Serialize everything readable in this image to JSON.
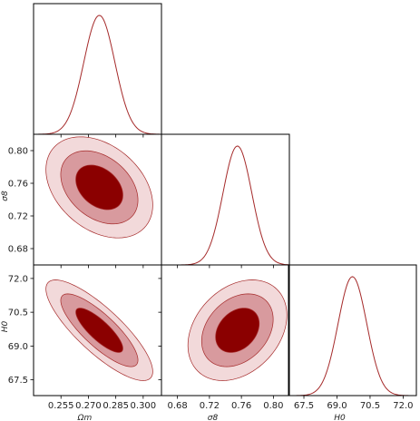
{
  "chart_data": {
    "type": "corner",
    "colors": {
      "line": "#a52a2a",
      "fill_1sigma": "#8b0000",
      "fill_2sigma": "#d89a9e",
      "fill_3sigma": "#f2d9da"
    },
    "parameters": [
      {
        "key": "om",
        "label": "Ωm",
        "range": [
          0.24,
          0.31
        ],
        "ticks": [
          "0.255",
          "0.270",
          "0.285",
          "0.300"
        ],
        "mean": 0.276,
        "sigma": 0.0085
      },
      {
        "key": "s8",
        "label": "σ8",
        "range": [
          0.66,
          0.82
        ],
        "ticks": [
          "0.68",
          "0.72",
          "0.76",
          "0.80"
        ],
        "mean": 0.755,
        "sigma": 0.018
      },
      {
        "key": "h0",
        "label": "H0",
        "range": [
          66.8,
          72.6
        ],
        "ticks": [
          "67.5",
          "69.0",
          "70.5",
          "72.0"
        ],
        "mean": 69.7,
        "sigma": 0.65
      }
    ],
    "y_tick_labels": {
      "s8": [
        "0.68",
        "0.72",
        "0.76",
        "0.80"
      ],
      "h0": [
        "67.5",
        "69.0",
        "70.5",
        "72.0"
      ]
    },
    "correlations": {
      "s8_om": -0.35,
      "h0_om": -0.82,
      "h0_s8": 0.3
    },
    "contour_levels_sigma": [
      1,
      2,
      3
    ]
  }
}
